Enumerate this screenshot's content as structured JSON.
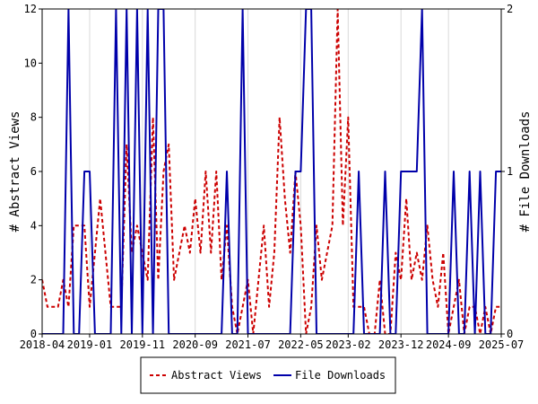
{
  "chart_data": {
    "type": "line",
    "x": [
      "2018-04",
      "2018-05",
      "2018-06",
      "2018-07",
      "2018-08",
      "2018-09",
      "2018-10",
      "2018-11",
      "2018-12",
      "2019-01",
      "2019-02",
      "2019-03",
      "2019-04",
      "2019-05",
      "2019-06",
      "2019-07",
      "2019-08",
      "2019-09",
      "2019-10",
      "2019-11",
      "2019-12",
      "2020-01",
      "2020-02",
      "2020-03",
      "2020-04",
      "2020-05",
      "2020-06",
      "2020-07",
      "2020-08",
      "2020-09",
      "2020-10",
      "2020-11",
      "2020-12",
      "2021-01",
      "2021-02",
      "2021-03",
      "2021-04",
      "2021-05",
      "2021-06",
      "2021-07",
      "2021-08",
      "2021-09",
      "2021-10",
      "2021-11",
      "2021-12",
      "2022-01",
      "2022-02",
      "2022-03",
      "2022-04",
      "2022-05",
      "2022-06",
      "2022-07",
      "2022-08",
      "2022-09",
      "2022-10",
      "2022-11",
      "2022-12",
      "2023-01",
      "2023-02",
      "2023-03",
      "2023-04",
      "2023-05",
      "2023-06",
      "2023-07",
      "2023-08",
      "2023-09",
      "2023-10",
      "2023-11",
      "2023-12",
      "2024-01",
      "2024-02",
      "2024-03",
      "2024-04",
      "2024-05",
      "2024-06",
      "2024-07",
      "2024-08",
      "2024-09",
      "2024-10",
      "2024-11",
      "2024-12",
      "2025-01",
      "2025-02",
      "2025-03",
      "2025-04",
      "2025-05",
      "2025-06",
      "2025-07"
    ],
    "x_ticks": [
      "2018-04",
      "2019-01",
      "2019-11",
      "2020-09",
      "2021-07",
      "2022-05",
      "2023-02",
      "2023-12",
      "2024-09",
      "2025-07"
    ],
    "y_left": {
      "label": "# Abstract Views",
      "ylim": [
        0,
        12
      ],
      "ticks": [
        "0",
        "2",
        "4",
        "6",
        "8",
        "10",
        "12"
      ]
    },
    "y_right": {
      "label": "# File Downloads",
      "ylim": [
        0,
        2
      ],
      "ticks": [
        "0",
        "1",
        "2"
      ]
    },
    "grid": "vertical",
    "series": [
      {
        "name": "Abstract Views",
        "axis": "left",
        "color": "#cc0000",
        "style": "dashed",
        "values": [
          2,
          1,
          1,
          1,
          2,
          1,
          4,
          4,
          4,
          1,
          3,
          5,
          3,
          1,
          1,
          1,
          7,
          3,
          4,
          3,
          2,
          8,
          2,
          6,
          7,
          2,
          3,
          4,
          3,
          5,
          3,
          6,
          3,
          6,
          2,
          4,
          1,
          0,
          1,
          2,
          0,
          2,
          4,
          1,
          3,
          8,
          5,
          3,
          6,
          4,
          0,
          1,
          4,
          2,
          3,
          4,
          12,
          4,
          8,
          1,
          1,
          1,
          0,
          0,
          2,
          0,
          0,
          3,
          2,
          5,
          2,
          3,
          2,
          4,
          2,
          1,
          3,
          0,
          1,
          2,
          0,
          1,
          1,
          0,
          1,
          0,
          1,
          1
        ]
      },
      {
        "name": "File Downloads",
        "axis": "right",
        "color": "#0000aa",
        "style": "solid",
        "values": [
          0,
          0,
          0,
          0,
          0,
          2,
          0,
          0,
          1,
          1,
          0,
          0,
          0,
          0,
          2,
          0,
          2,
          0,
          2,
          0,
          2,
          0,
          2,
          2,
          0,
          0,
          0,
          0,
          0,
          0,
          0,
          0,
          0,
          0,
          0,
          1,
          0,
          0,
          2,
          0,
          0,
          0,
          0,
          0,
          0,
          0,
          0,
          0,
          1,
          1,
          2,
          2,
          0,
          0,
          0,
          0,
          0,
          0,
          0,
          0,
          1,
          0,
          0,
          0,
          0,
          1,
          0,
          0,
          1,
          1,
          1,
          1,
          2,
          0,
          0,
          0,
          0,
          0,
          1,
          0,
          0,
          1,
          0,
          1,
          0,
          0,
          1,
          1
        ]
      }
    ],
    "legend": {
      "position": "bottom-center",
      "entries": [
        "Abstract Views",
        "File Downloads"
      ]
    }
  }
}
